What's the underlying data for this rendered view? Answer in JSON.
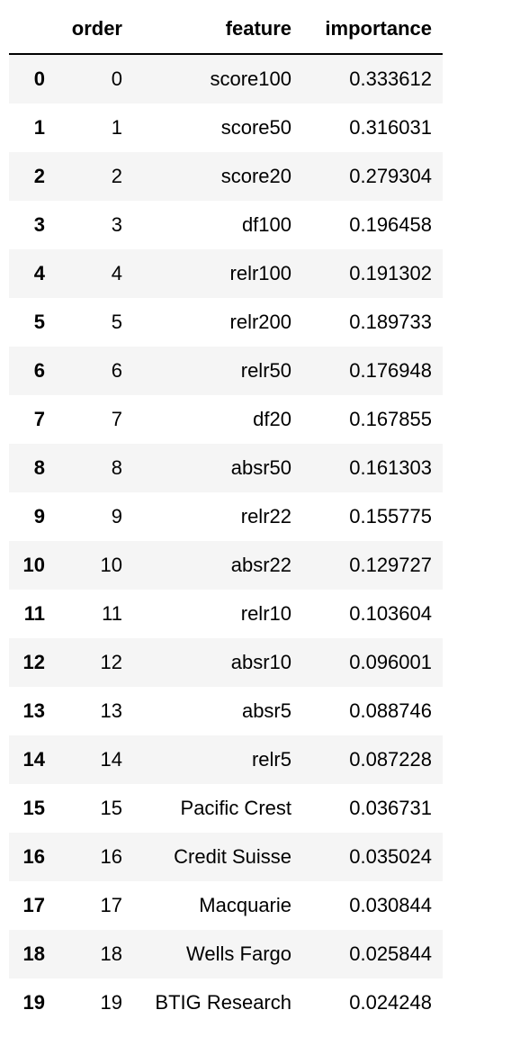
{
  "table": {
    "columns": [
      "",
      "order",
      "feature",
      "importance"
    ],
    "rows": [
      {
        "index": "0",
        "order": "0",
        "feature": "score100",
        "importance": "0.333612"
      },
      {
        "index": "1",
        "order": "1",
        "feature": "score50",
        "importance": "0.316031"
      },
      {
        "index": "2",
        "order": "2",
        "feature": "score20",
        "importance": "0.279304"
      },
      {
        "index": "3",
        "order": "3",
        "feature": "df100",
        "importance": "0.196458"
      },
      {
        "index": "4",
        "order": "4",
        "feature": "relr100",
        "importance": "0.191302"
      },
      {
        "index": "5",
        "order": "5",
        "feature": "relr200",
        "importance": "0.189733"
      },
      {
        "index": "6",
        "order": "6",
        "feature": "relr50",
        "importance": "0.176948"
      },
      {
        "index": "7",
        "order": "7",
        "feature": "df20",
        "importance": "0.167855"
      },
      {
        "index": "8",
        "order": "8",
        "feature": "absr50",
        "importance": "0.161303"
      },
      {
        "index": "9",
        "order": "9",
        "feature": "relr22",
        "importance": "0.155775"
      },
      {
        "index": "10",
        "order": "10",
        "feature": "absr22",
        "importance": "0.129727"
      },
      {
        "index": "11",
        "order": "11",
        "feature": "relr10",
        "importance": "0.103604"
      },
      {
        "index": "12",
        "order": "12",
        "feature": "absr10",
        "importance": "0.096001"
      },
      {
        "index": "13",
        "order": "13",
        "feature": "absr5",
        "importance": "0.088746"
      },
      {
        "index": "14",
        "order": "14",
        "feature": "relr5",
        "importance": "0.087228"
      },
      {
        "index": "15",
        "order": "15",
        "feature": "Pacific Crest",
        "importance": "0.036731"
      },
      {
        "index": "16",
        "order": "16",
        "feature": "Credit Suisse",
        "importance": "0.035024"
      },
      {
        "index": "17",
        "order": "17",
        "feature": "Macquarie",
        "importance": "0.030844"
      },
      {
        "index": "18",
        "order": "18",
        "feature": "Wells Fargo",
        "importance": "0.025844"
      },
      {
        "index": "19",
        "order": "19",
        "feature": "BTIG Research",
        "importance": "0.024248"
      }
    ]
  }
}
